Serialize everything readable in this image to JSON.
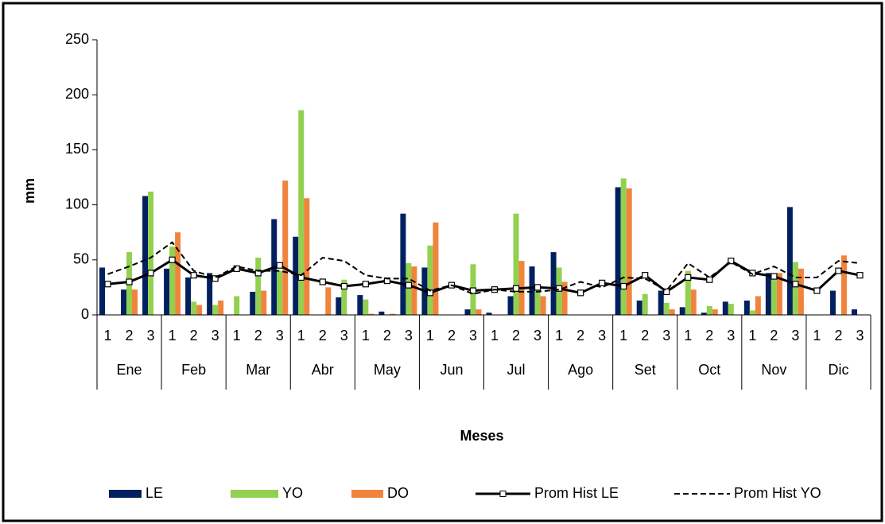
{
  "chart_data": {
    "type": "bar",
    "y_label": "mm",
    "x_label": "Meses",
    "categories": [
      "1",
      "2",
      "3",
      "1",
      "2",
      "3",
      "1",
      "2",
      "3",
      "1",
      "2",
      "3",
      "1",
      "2",
      "3",
      "1",
      "2",
      "3",
      "1",
      "2",
      "3",
      "1",
      "2",
      "3",
      "1",
      "2",
      "3",
      "1",
      "2",
      "3",
      "1",
      "2",
      "3",
      "1",
      "2",
      "3"
    ],
    "months": [
      "Ene",
      "Feb",
      "Mar",
      "Abr",
      "May",
      "Jun",
      "Jul",
      "Ago",
      "Set",
      "Oct",
      "Nov",
      "Dic"
    ],
    "ylim": [
      0,
      250
    ],
    "yticks": [
      0,
      50,
      100,
      150,
      200,
      250
    ],
    "grid": false,
    "legend": "bottom",
    "series": [
      {
        "name": "LE",
        "type": "bar",
        "color": "#002060",
        "values": [
          43,
          23,
          108,
          42,
          34,
          38,
          0,
          21,
          87,
          71,
          0,
          16,
          18,
          3,
          92,
          43,
          0,
          5,
          2,
          17,
          44,
          57,
          0,
          0,
          116,
          13,
          22,
          7,
          2,
          12,
          13,
          38,
          98,
          0,
          22,
          5
        ]
      },
      {
        "name": "YO",
        "type": "bar",
        "color": "#92d050",
        "values": [
          0,
          57,
          112,
          62,
          12,
          9,
          17,
          52,
          40,
          186,
          0,
          32,
          14,
          0,
          47,
          63,
          0,
          46,
          0,
          92,
          25,
          43,
          0,
          0,
          124,
          19,
          11,
          40,
          8,
          10,
          4,
          35,
          48,
          0,
          0,
          0
        ]
      },
      {
        "name": "DO",
        "type": "bar",
        "color": "#f0843c",
        "values": [
          0,
          23,
          0,
          75,
          9,
          13,
          0,
          22,
          122,
          106,
          25,
          0,
          1,
          1,
          44,
          84,
          0,
          5,
          0,
          49,
          17,
          30,
          0,
          0,
          115,
          0,
          5,
          23,
          5,
          0,
          17,
          38,
          42,
          0,
          54,
          0
        ]
      },
      {
        "name": "Prom Hist LE",
        "type": "line",
        "color": "#000000",
        "style": "solid",
        "marker": "square",
        "values": [
          28,
          30,
          38,
          50,
          36,
          33,
          42,
          38,
          45,
          34,
          30,
          26,
          28,
          31,
          27,
          20,
          27,
          22,
          23,
          24,
          25,
          24,
          20,
          29,
          26,
          36,
          21,
          34,
          32,
          49,
          38,
          35,
          28,
          22,
          40,
          36
        ]
      },
      {
        "name": "Prom Hist YO",
        "type": "line",
        "color": "#000000",
        "style": "dashed",
        "values": [
          37,
          44,
          52,
          66,
          40,
          34,
          44,
          40,
          40,
          36,
          52,
          49,
          36,
          33,
          33,
          22,
          27,
          19,
          23,
          21,
          21,
          23,
          30,
          25,
          34,
          33,
          22,
          47,
          34,
          48,
          37,
          44,
          34,
          34,
          49,
          47
        ]
      }
    ]
  }
}
